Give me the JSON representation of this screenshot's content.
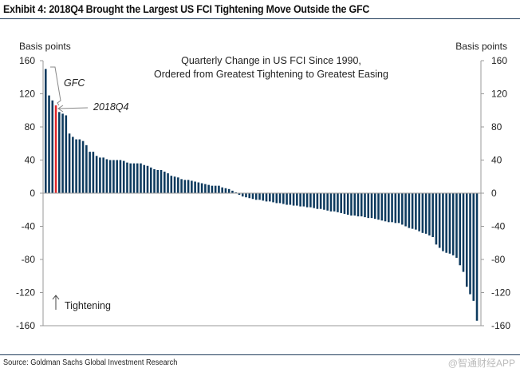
{
  "header": {
    "title": "Exhibit 4: 2018Q4 Brought the Largest US FCI Tightening Move Outside the GFC"
  },
  "footer": {
    "source": "Source: Goldman Sachs Global Investment Research",
    "watermark": "@智通财经APP"
  },
  "colors": {
    "bar": "#0d3a5e",
    "highlight": "#e0262a",
    "axis": "#999999"
  },
  "chart_data": {
    "type": "bar",
    "title": "Quarterly Change in US FCI Since 1990,",
    "subtitle": "Ordered from Greatest Tightening to Greatest Easing",
    "ylabel_left": "Basis points",
    "ylabel_right": "Basis points",
    "ylim": [
      -160,
      160
    ],
    "yticks": [
      "160",
      "120",
      "80",
      "40",
      "0",
      "-40",
      "-80",
      "-120",
      "-160"
    ],
    "ytick_values": [
      160,
      120,
      80,
      40,
      0,
      -40,
      -80,
      -120,
      -160
    ],
    "grid": false,
    "annotations": {
      "gfc": "GFC",
      "q4": "2018Q4",
      "tightening": "Tightening"
    },
    "highlight_index": 3,
    "gfc_indices": [
      0,
      1,
      2
    ],
    "values": [
      150,
      118,
      112,
      106,
      98,
      96,
      94,
      72,
      68,
      65,
      65,
      63,
      58,
      50,
      50,
      45,
      43,
      43,
      41,
      40,
      40,
      40,
      40,
      39,
      37,
      36,
      36,
      36,
      36,
      34,
      33,
      31,
      29,
      28,
      28,
      26,
      24,
      21,
      20,
      19,
      17,
      16,
      16,
      15,
      14,
      13,
      12,
      11,
      10,
      9,
      9,
      9,
      7,
      6,
      5,
      3,
      1,
      -2,
      -4,
      -5,
      -6,
      -7,
      -8,
      -8,
      -9,
      -10,
      -10,
      -11,
      -12,
      -12,
      -13,
      -14,
      -14,
      -15,
      -15,
      -16,
      -16,
      -17,
      -17,
      -18,
      -19,
      -19,
      -20,
      -21,
      -22,
      -22,
      -23,
      -24,
      -25,
      -26,
      -27,
      -27,
      -28,
      -28,
      -29,
      -30,
      -30,
      -31,
      -32,
      -33,
      -34,
      -35,
      -35,
      -36,
      -36,
      -38,
      -40,
      -42,
      -43,
      -44,
      -46,
      -48,
      -49,
      -51,
      -53,
      -62,
      -66,
      -70,
      -72,
      -73,
      -75,
      -78,
      -87,
      -95,
      -113,
      -122,
      -130,
      -154
    ]
  }
}
